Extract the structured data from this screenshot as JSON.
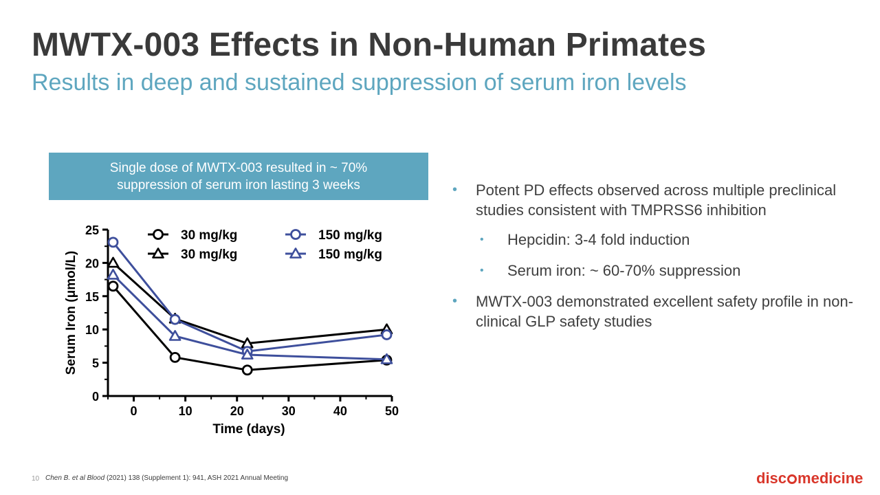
{
  "slide": {
    "title": "MWTX-003 Effects in Non-Human Primates",
    "subtitle": "Results in deep and sustained suppression of serum iron levels",
    "callout_line1": "Single dose of MWTX-003 resulted in ~ 70%",
    "callout_line2": "suppression of serum iron lasting 3 weeks",
    "bullets": {
      "b1": "Potent PD effects observed across multiple preclinical studies consistent with TMPRSS6 inhibition",
      "b1a": "Hepcidin: 3-4 fold induction",
      "b1b": "Serum iron: ~ 60-70% suppression",
      "b2": "MWTX-003 demonstrated excellent safety profile in non-clinical GLP safety studies"
    },
    "bullet_color": "#5ea6bf",
    "page_number": "10",
    "citation_italic": "Chen B. et al Blood",
    "citation_rest": " (2021) 138 (Supplement 1): 941, ASH 2021 Annual Meeting",
    "logo_left": "disc",
    "logo_right": "medicine",
    "logo_color": "#d9372b"
  },
  "chart_data": {
    "type": "line",
    "xlabel": "Time (days)",
    "ylabel": "Serum Iron (μmol/L)",
    "xlim": [
      -5,
      50
    ],
    "ylim": [
      0,
      25
    ],
    "xticks": [
      "0",
      "10",
      "20",
      "30",
      "40",
      "50"
    ],
    "yticks": [
      "0",
      "5",
      "10",
      "15",
      "20",
      "25"
    ],
    "x": [
      -4,
      8,
      22,
      49
    ],
    "legend_position": "top",
    "series": [
      {
        "name": "30 mg/kg",
        "marker": "circle",
        "color": "#000000",
        "values": [
          16.5,
          5.8,
          3.9,
          5.4
        ]
      },
      {
        "name": "30 mg/kg",
        "marker": "triangle",
        "color": "#000000",
        "values": [
          20.0,
          11.6,
          7.9,
          10.0
        ]
      },
      {
        "name": "150 mg/kg",
        "marker": "circle",
        "color": "#3e4f9c",
        "values": [
          23.1,
          11.5,
          6.7,
          9.2
        ]
      },
      {
        "name": "150 mg/kg",
        "marker": "triangle",
        "color": "#3e4f9c",
        "values": [
          18.2,
          9.0,
          6.2,
          5.5
        ]
      }
    ]
  }
}
